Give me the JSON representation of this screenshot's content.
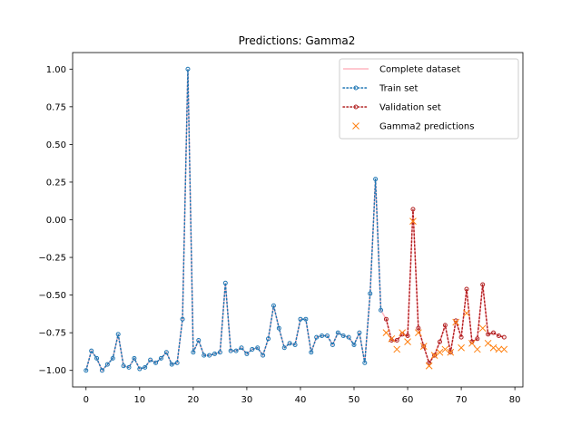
{
  "chart_data": {
    "type": "line",
    "title": "Predictions: Gamma2",
    "xlabel": "",
    "ylabel": "",
    "xlim": [
      -2.5,
      81.5
    ],
    "ylim": [
      -1.11,
      1.11
    ],
    "x_ticks": [
      0,
      10,
      20,
      30,
      40,
      50,
      60,
      70,
      80
    ],
    "y_ticks": [
      -1.0,
      -0.75,
      -0.5,
      -0.25,
      0.0,
      0.25,
      0.5,
      0.75,
      1.0
    ],
    "x_tick_labels": [
      "0",
      "10",
      "20",
      "30",
      "40",
      "50",
      "60",
      "70",
      "80"
    ],
    "y_tick_labels": [
      "−1.00",
      "−0.75",
      "−0.50",
      "−0.25",
      "0.00",
      "0.25",
      "0.50",
      "0.75",
      "1.00"
    ],
    "grid": false,
    "legend_position": "upper-right",
    "colors": {
      "complete": "#ffb6c1",
      "train": "#1f77b4",
      "validation": "#b22222",
      "predictions": "#ff7f0e"
    },
    "series": [
      {
        "name": "Complete dataset",
        "style": "solid-line",
        "x": [
          0,
          1,
          2,
          3,
          4,
          5,
          6,
          7,
          8,
          9,
          10,
          11,
          12,
          13,
          14,
          15,
          16,
          17,
          18,
          19,
          20,
          21,
          22,
          23,
          24,
          25,
          26,
          27,
          28,
          29,
          30,
          31,
          32,
          33,
          34,
          35,
          36,
          37,
          38,
          39,
          40,
          41,
          42,
          43,
          44,
          45,
          46,
          47,
          48,
          49,
          50,
          51,
          52,
          53,
          54,
          55,
          56,
          57,
          58,
          59,
          60,
          61,
          62,
          63,
          64,
          65,
          66,
          67,
          68,
          69,
          70,
          71,
          72,
          73,
          74,
          75,
          76,
          77,
          78
        ],
        "y": [
          -1.0,
          -0.87,
          -0.92,
          -1.0,
          -0.96,
          -0.92,
          -0.76,
          -0.97,
          -0.98,
          -0.92,
          -0.99,
          -0.98,
          -0.93,
          -0.95,
          -0.92,
          -0.88,
          -0.96,
          -0.95,
          -0.66,
          1.0,
          -0.88,
          -0.8,
          -0.9,
          -0.9,
          -0.89,
          -0.88,
          -0.42,
          -0.87,
          -0.87,
          -0.85,
          -0.89,
          -0.86,
          -0.85,
          -0.9,
          -0.79,
          -0.57,
          -0.72,
          -0.85,
          -0.82,
          -0.83,
          -0.66,
          -0.66,
          -0.88,
          -0.78,
          -0.77,
          -0.77,
          -0.83,
          -0.75,
          -0.77,
          -0.78,
          -0.83,
          -0.75,
          -0.95,
          -0.49,
          0.27,
          -0.6,
          -0.66,
          -0.8,
          -0.8,
          -0.76,
          -0.77,
          0.07,
          -0.72,
          -0.84,
          -0.95,
          -0.9,
          -0.81,
          -0.7,
          -0.88,
          -0.67,
          -0.78,
          -0.46,
          -0.81,
          -0.79,
          -0.43,
          -0.76,
          -0.75,
          -0.77,
          -0.78
        ]
      },
      {
        "name": "Train set",
        "style": "dotted-line-circle-markers",
        "x": [
          0,
          1,
          2,
          3,
          4,
          5,
          6,
          7,
          8,
          9,
          10,
          11,
          12,
          13,
          14,
          15,
          16,
          17,
          18,
          19,
          20,
          21,
          22,
          23,
          24,
          25,
          26,
          27,
          28,
          29,
          30,
          31,
          32,
          33,
          34,
          35,
          36,
          37,
          38,
          39,
          40,
          41,
          42,
          43,
          44,
          45,
          46,
          47,
          48,
          49,
          50,
          51,
          52,
          53,
          54,
          55
        ],
        "y": [
          -1.0,
          -0.87,
          -0.92,
          -1.0,
          -0.96,
          -0.92,
          -0.76,
          -0.97,
          -0.98,
          -0.92,
          -0.99,
          -0.98,
          -0.93,
          -0.95,
          -0.92,
          -0.88,
          -0.96,
          -0.95,
          -0.66,
          1.0,
          -0.88,
          -0.8,
          -0.9,
          -0.9,
          -0.89,
          -0.88,
          -0.42,
          -0.87,
          -0.87,
          -0.85,
          -0.89,
          -0.86,
          -0.85,
          -0.9,
          -0.79,
          -0.57,
          -0.72,
          -0.85,
          -0.82,
          -0.83,
          -0.66,
          -0.66,
          -0.88,
          -0.78,
          -0.77,
          -0.77,
          -0.83,
          -0.75,
          -0.77,
          -0.78,
          -0.83,
          -0.75,
          -0.95,
          -0.49,
          0.27,
          -0.6
        ]
      },
      {
        "name": "Validation set",
        "style": "dotted-line-circle-markers",
        "x": [
          56,
          57,
          58,
          59,
          60,
          61,
          62,
          63,
          64,
          65,
          66,
          67,
          68,
          69,
          70,
          71,
          72,
          73,
          74,
          75,
          76,
          77,
          78
        ],
        "y": [
          -0.66,
          -0.8,
          -0.8,
          -0.76,
          -0.77,
          0.07,
          -0.72,
          -0.84,
          -0.95,
          -0.9,
          -0.81,
          -0.7,
          -0.88,
          -0.67,
          -0.78,
          -0.46,
          -0.81,
          -0.79,
          -0.43,
          -0.76,
          -0.75,
          -0.77,
          -0.78
        ]
      },
      {
        "name": "Gamma2 predictions",
        "style": "x-markers",
        "x": [
          56,
          57,
          58,
          59,
          60,
          61,
          62,
          63,
          64,
          65,
          66,
          67,
          68,
          69,
          70,
          71,
          72,
          73,
          74,
          75,
          76,
          77,
          78
        ],
        "y": [
          -0.75,
          -0.79,
          -0.86,
          -0.75,
          -0.81,
          -0.01,
          -0.75,
          -0.84,
          -0.97,
          -0.9,
          -0.88,
          -0.86,
          -0.88,
          -0.68,
          -0.85,
          -0.62,
          -0.82,
          -0.86,
          -0.72,
          -0.82,
          -0.85,
          -0.86,
          -0.86
        ]
      }
    ]
  }
}
